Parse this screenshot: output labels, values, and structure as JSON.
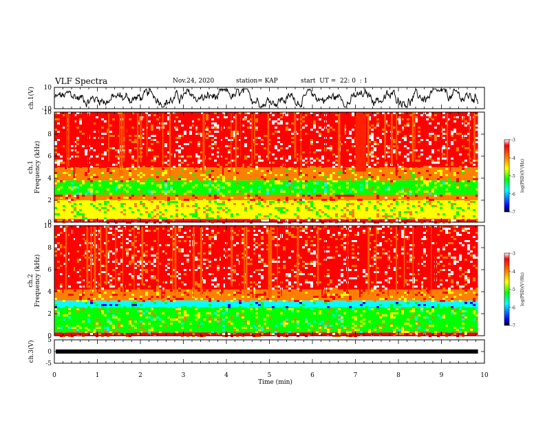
{
  "header": {
    "title": "VLF Spectra",
    "date": "Nov.24, 2020",
    "station": "station= KAP",
    "start": "start  UT =  22: 0  : 1"
  },
  "chart_data": [
    {
      "type": "line",
      "panel": "ch1-waveform",
      "ylabel": "ch.1(V)",
      "ylim": [
        -10,
        10
      ],
      "yticks": [
        "10",
        "-10"
      ],
      "xlim": [
        0,
        10
      ],
      "series": [
        {
          "values_range": [
            -10,
            10
          ],
          "mean_level": 0
        }
      ]
    },
    {
      "type": "heatmap",
      "panel": "ch1-spectrogram",
      "ylabel": "ch.1\nFrequency (kHz)",
      "ylim": [
        0,
        10
      ],
      "yticks": [
        "0",
        "2",
        "4",
        "6",
        "8",
        "10"
      ],
      "xlim": [
        0,
        9.85
      ],
      "colorbar": {
        "label": "log(PSD)(V²/Hz)",
        "range": [
          -7,
          -3
        ],
        "ticks": [
          "-3",
          "-4",
          "-5",
          "-6",
          "-7"
        ]
      },
      "bands": [
        {
          "freq_kHz": [
            0,
            0.3
          ],
          "logPSD": -3.5
        },
        {
          "freq_kHz": [
            0.3,
            2.0
          ],
          "logPSD": -5.0
        },
        {
          "freq_kHz": [
            2.0,
            2.5
          ],
          "logPSD": -4.0
        },
        {
          "freq_kHz": [
            2.5,
            3.8
          ],
          "logPSD": -5.3
        },
        {
          "freq_kHz": [
            3.8,
            5.0
          ],
          "logPSD": -4.6
        },
        {
          "freq_kHz": [
            5.0,
            10.0
          ],
          "logPSD": -3.6
        }
      ],
      "features": [
        "intense broadband emission above ~5 kHz",
        "enhanced emission near 7.0–7.2 min, 4.5–10 kHz"
      ]
    },
    {
      "type": "heatmap",
      "panel": "ch2-spectrogram",
      "ylabel": "ch.2\nFrequency (kHz)",
      "ylim": [
        0,
        10
      ],
      "yticks": [
        "0",
        "2",
        "4",
        "6",
        "8",
        "10"
      ],
      "xlim": [
        0,
        9.85
      ],
      "colorbar": {
        "label": "log(PSD)(V²/Hz)",
        "range": [
          -7,
          -3
        ],
        "ticks": [
          "-3",
          "-4",
          "-5",
          "-6",
          "-7"
        ]
      },
      "bands": [
        {
          "freq_kHz": [
            0,
            0.3
          ],
          "logPSD": -3.8
        },
        {
          "freq_kHz": [
            0.3,
            2.6
          ],
          "logPSD": -5.2
        },
        {
          "freq_kHz": [
            2.6,
            3.2
          ],
          "logPSD": -6.2
        },
        {
          "freq_kHz": [
            3.2,
            4.2
          ],
          "logPSD": -4.3
        },
        {
          "freq_kHz": [
            4.2,
            10.0
          ],
          "logPSD": -3.6
        }
      ],
      "features": [
        "intense broadband emission above ~4 kHz",
        "weak band near 2.6–3.2 kHz"
      ]
    },
    {
      "type": "line",
      "panel": "ch3-waveform",
      "ylabel": "ch.3(V)",
      "ylim": [
        -5,
        5
      ],
      "yticks": [
        "5",
        "0",
        "-5"
      ],
      "xlim": [
        0,
        10
      ],
      "series": [
        {
          "level": 0
        }
      ]
    }
  ],
  "xaxis": {
    "label": "Time (min)",
    "ticks": [
      "0",
      "1",
      "2",
      "3",
      "4",
      "5",
      "6",
      "7",
      "8",
      "9",
      "10"
    ],
    "range": [
      0,
      10
    ]
  },
  "colors": {
    "scale": [
      "#000000",
      "#0000ff",
      "#00ffff",
      "#00ff00",
      "#ffff00",
      "#ff8000",
      "#ff0000",
      "#ffffff"
    ],
    "axis": "#000000"
  }
}
